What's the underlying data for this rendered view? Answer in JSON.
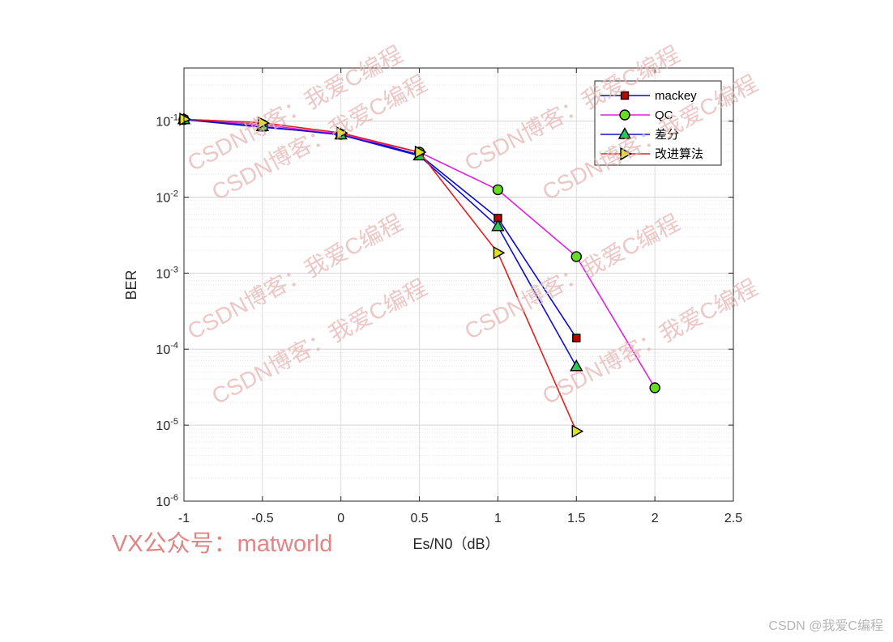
{
  "chart_data": {
    "type": "line",
    "title": "",
    "xlabel": "Es/N0（dB）",
    "ylabel": "BER",
    "xlim": [
      -1,
      2.5
    ],
    "ylim": [
      1e-06,
      0.5
    ],
    "yscale": "log",
    "grid": true,
    "legend_position": "top-right",
    "x_ticks": [
      "-1",
      "-0.5",
      "0",
      "0.5",
      "1",
      "1.5",
      "2",
      "2.5"
    ],
    "y_ticks": [
      {
        "value": 1e-06,
        "base": "10",
        "exp": "-6"
      },
      {
        "value": 1e-05,
        "base": "10",
        "exp": "-5"
      },
      {
        "value": 0.0001,
        "base": "10",
        "exp": "-4"
      },
      {
        "value": 0.001,
        "base": "10",
        "exp": "-3"
      },
      {
        "value": 0.01,
        "base": "10",
        "exp": "-2"
      },
      {
        "value": 0.1,
        "base": "10",
        "exp": "-1"
      }
    ],
    "series": [
      {
        "name": "mackey",
        "color": "#0a0ad0",
        "marker": "square",
        "marker_fill": "#c00000",
        "x": [
          -1,
          -0.5,
          0,
          0.5,
          1,
          1.5
        ],
        "y": [
          0.105,
          0.083,
          0.068,
          0.036,
          0.0053,
          0.00014
        ]
      },
      {
        "name": "QC",
        "color": "#e020e0",
        "marker": "circle",
        "marker_fill": "#66dd22",
        "x": [
          -1,
          -0.5,
          0,
          0.5,
          1,
          1.5,
          2
        ],
        "y": [
          0.105,
          0.09,
          0.067,
          0.039,
          0.0125,
          0.00165,
          3.1e-05
        ]
      },
      {
        "name": "差分",
        "color": "#1010c8",
        "marker": "triangle-up",
        "marker_fill": "#22cc55",
        "x": [
          -1,
          -0.5,
          0,
          0.5,
          1,
          1.5
        ],
        "y": [
          0.105,
          0.085,
          0.066,
          0.035,
          0.0041,
          5.9e-05
        ]
      },
      {
        "name": "改进算法",
        "color": "#e02020",
        "marker": "triangle-right",
        "marker_fill": "#e0e020",
        "x": [
          -1,
          -0.5,
          0,
          0.5,
          1,
          1.5
        ],
        "y": [
          0.106,
          0.095,
          0.07,
          0.039,
          0.00185,
          8.3e-06
        ]
      }
    ]
  },
  "watermarks": {
    "blog_marks": [
      "CSDN博客：我爱C编程",
      "CSDN博客：我爱C编程",
      "CSDN博客：我爱C编程",
      "CSDN博客：我爱C编程",
      "CSDN博客：我爱C编程",
      "CSDN博客：我爱C编程",
      "CSDN博客：我爱C编程",
      "CSDN博客：我爱C编程"
    ],
    "vx": "VX公众号：matworld",
    "credit": "CSDN @我爱C编程"
  }
}
